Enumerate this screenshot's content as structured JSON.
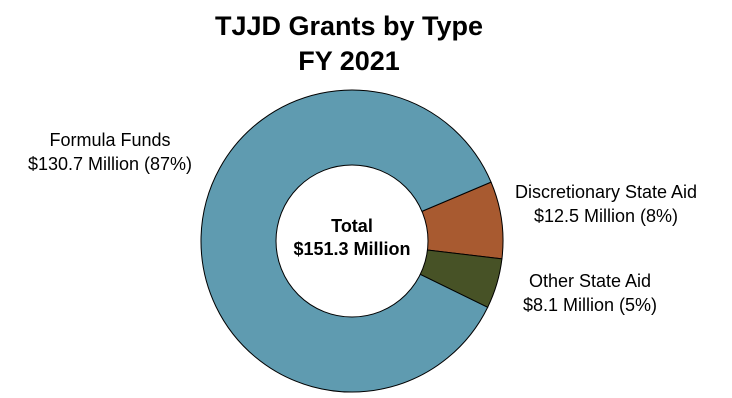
{
  "chart_data": {
    "type": "pie",
    "title": "TJJD Grants by Type",
    "subtitle": "FY 2021",
    "center_label": {
      "line1": "Total",
      "line2": "$151.3 Million"
    },
    "slices": [
      {
        "name": "Formula Funds",
        "value": 130.7,
        "percent": 87,
        "detail": "$130.7 Million (87%)",
        "color": "#5f9bb0"
      },
      {
        "name": "Discretionary State Aid",
        "value": 12.5,
        "percent": 8,
        "detail": "$12.5 Million (8%)",
        "color": "#a85a30"
      },
      {
        "name": "Other State Aid",
        "value": 8.1,
        "percent": 5,
        "detail": "$8.1 Million (5%)",
        "color": "#475226"
      }
    ]
  }
}
